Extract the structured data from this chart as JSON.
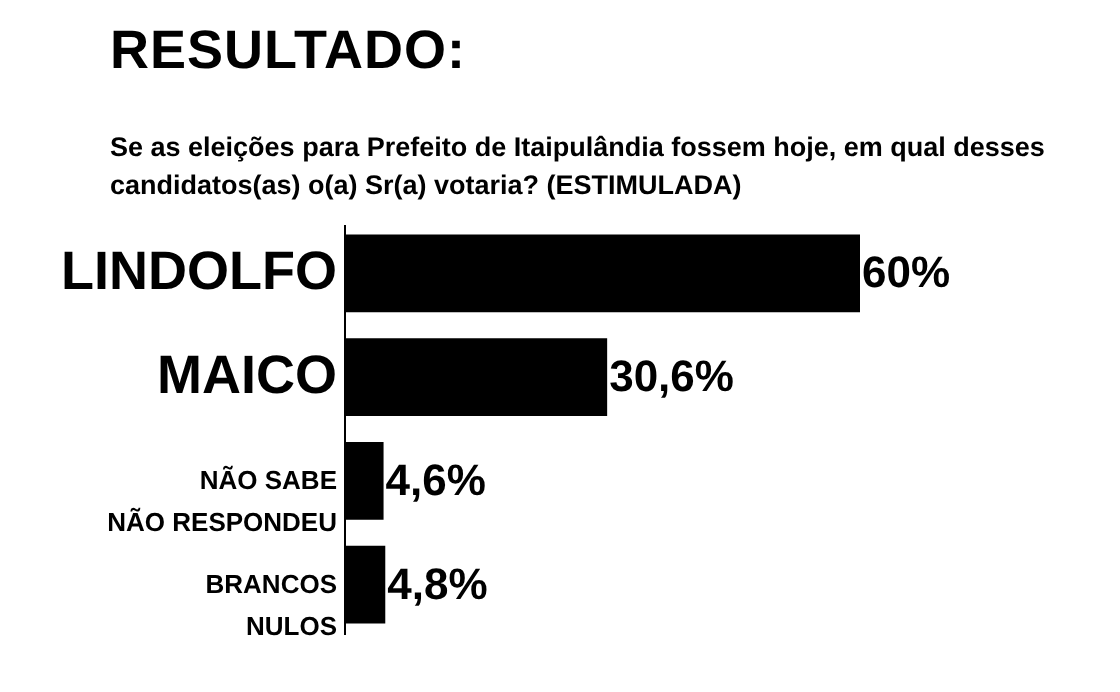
{
  "chart_data": {
    "type": "bar",
    "orientation": "horizontal",
    "title": "RESULTADO:",
    "subtitle": "Se as eleições para Prefeito de Itaipulândia fossem hoje, em qual desses candidatos(as) o(a) Sr(a) votaria? (ESTIMULADA)",
    "categories": [
      "LINDOLFO",
      "MAICO",
      "NÃO SABE\nNÃO RESPONDEU",
      "BRANCOS\nNULOS"
    ],
    "values": [
      60,
      30.6,
      4.6,
      4.8
    ],
    "value_labels": [
      "60%",
      "30,6%",
      "4,6%",
      "4,8%"
    ],
    "color": "#000000"
  }
}
